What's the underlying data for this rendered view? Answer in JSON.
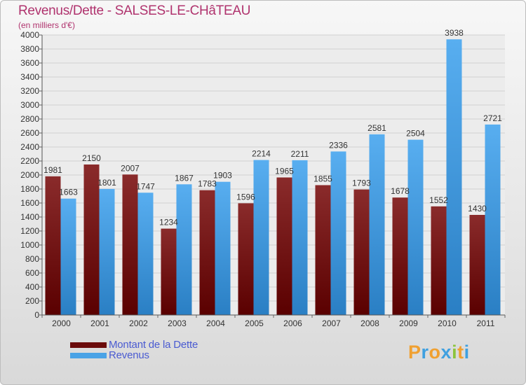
{
  "title": "Revenus/Dette - SALSES-LE-CHâTEAU",
  "subtitle": "(en milliers d'€)",
  "brand": {
    "letters": [
      "P",
      "r",
      "o",
      "x",
      "i",
      "t",
      "i"
    ],
    "colors": [
      "#f0a030",
      "#3fa0e0",
      "#f0a030",
      "#3fa0e0",
      "#8cc43c",
      "#f0a030",
      "#3fa0e0"
    ]
  },
  "chart_data": {
    "type": "bar",
    "categories": [
      "2000",
      "2001",
      "2002",
      "2003",
      "2004",
      "2005",
      "2006",
      "2007",
      "2008",
      "2009",
      "2010",
      "2011"
    ],
    "series": [
      {
        "name": "Montant de la Dette",
        "color": "#7a1a1a",
        "values": [
          1981,
          2150,
          2007,
          1234,
          1783,
          1596,
          1965,
          1855,
          1793,
          1678,
          1552,
          1430
        ],
        "labels": [
          "1981",
          "2150",
          "2007",
          "1234",
          "1783",
          "1596",
          "1965",
          "1855",
          "1793",
          "1678",
          "1552",
          "1430"
        ]
      },
      {
        "name": "Revenus",
        "color": "#4aa3e6",
        "values": [
          1663,
          1801,
          1747,
          1867,
          1903,
          2214,
          2211,
          2336,
          2581,
          2504,
          3938,
          2721
        ],
        "labels": [
          "1663",
          "1801",
          "1747",
          "1867",
          "1903",
          "2214",
          "2211",
          "2336",
          "2581",
          "2504",
          "3938",
          "2721"
        ]
      }
    ],
    "ylim": [
      0,
      4000
    ],
    "yticks": [
      "0",
      "200",
      "400",
      "600",
      "800",
      "1000",
      "1200",
      "1400",
      "1600",
      "1800",
      "2000",
      "2200",
      "2400",
      "2600",
      "2800",
      "3000",
      "3200",
      "3400",
      "3600",
      "3800",
      "4000"
    ],
    "grid": true,
    "legend": "bottom-left"
  }
}
